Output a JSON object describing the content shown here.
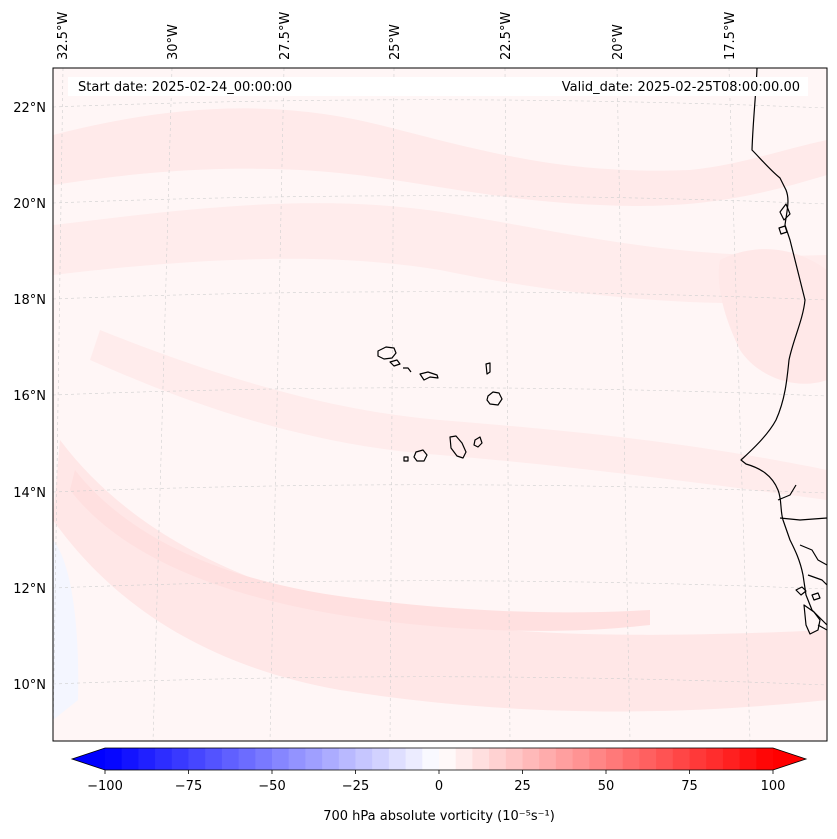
{
  "map": {
    "start_date_text": "Start date: 2025-02-24_00:00:00",
    "valid_date_text": "Valid_date: 2025-02-25T08:00:00.00",
    "longitude_labels": [
      "32.5°W",
      "30°W",
      "27.5°W",
      "25°W",
      "22.5°W",
      "20°W",
      "17.5°W"
    ],
    "latitude_labels": [
      "22°N",
      "20°N",
      "18°N",
      "16°N",
      "14°N",
      "12°N",
      "10°N"
    ],
    "colors": {
      "coastline": "#000000",
      "gridline": "#c8c8c8",
      "background_field": "#fff6f6",
      "weak_positive": "#ffe6e6",
      "slight_negative": "#f4f6ff"
    }
  },
  "colorbar": {
    "label": "700 hPa absolute vorticity (10⁻⁵s⁻¹)",
    "ticks": [
      "−100",
      "−75",
      "−50",
      "−25",
      "0",
      "25",
      "50",
      "75",
      "100"
    ],
    "tick_values": [
      -100,
      -75,
      -50,
      -25,
      0,
      25,
      50,
      75,
      100
    ],
    "min": -100,
    "max": 100,
    "levels": 40,
    "extend": "both",
    "colormap": "bwr"
  }
}
